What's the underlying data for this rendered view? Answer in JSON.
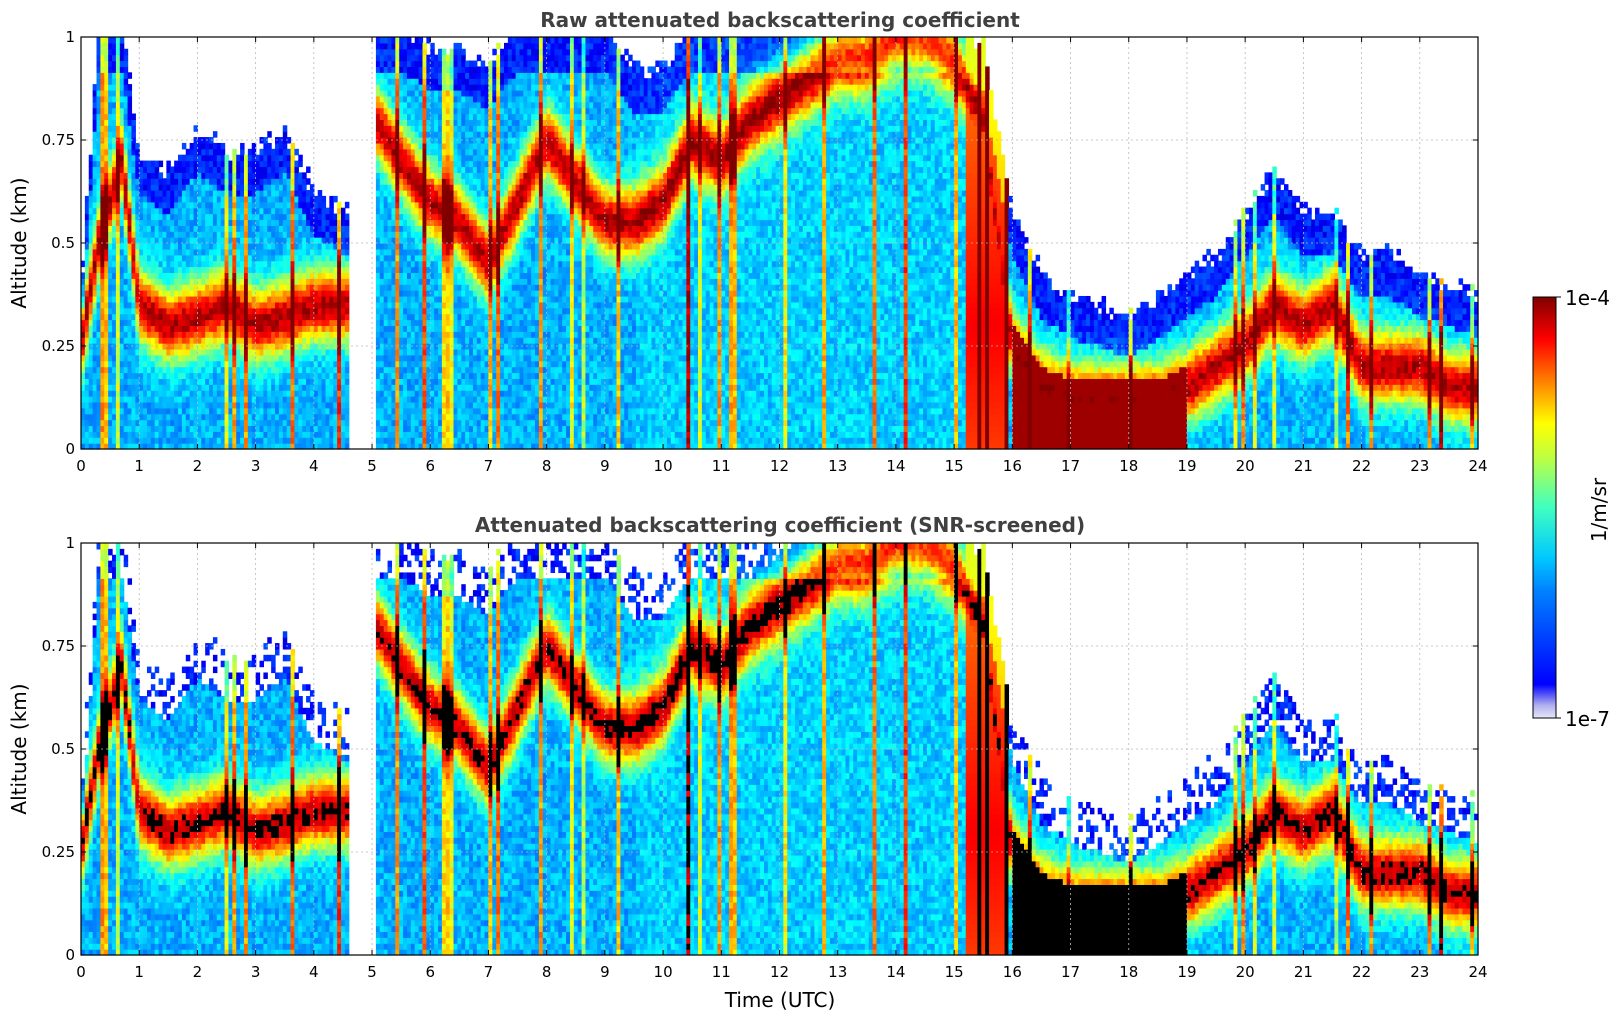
{
  "colorbar": {
    "label": "1/m/sr",
    "max_label": "1e-4",
    "min_label": "1e-7",
    "range": [
      1e-07,
      0.0001
    ],
    "scale": "log",
    "colormap": "jet",
    "min_color": "#e6e6fa"
  },
  "chart_data": [
    {
      "type": "heatmap",
      "title": "Raw attenuated backscattering coefficient",
      "xlabel": "",
      "ylabel": "Altitude (km)",
      "xlim": [
        0,
        24
      ],
      "ylim": [
        0,
        1
      ],
      "xticks": [
        0,
        1,
        2,
        3,
        4,
        5,
        6,
        7,
        8,
        9,
        10,
        11,
        12,
        13,
        14,
        15,
        16,
        17,
        18,
        19,
        20,
        21,
        22,
        23,
        24
      ],
      "xtick_labels": [
        "0",
        "1",
        "2",
        "3",
        "4",
        "5",
        "6",
        "7",
        "8",
        "9",
        "10",
        "11",
        "12",
        "13",
        "14",
        "15",
        "16",
        "17",
        "18",
        "19",
        "20",
        "21",
        "22",
        "23",
        "24"
      ],
      "yticks": [
        0,
        0.25,
        0.5,
        0.75,
        1
      ],
      "ytick_labels": [
        "0",
        "0.25",
        "0.5",
        "0.75",
        "1"
      ],
      "grid": true,
      "data_gap_hours": [
        4.62,
        5.05
      ],
      "profile_keypoints": {
        "time_h": [
          0,
          0.3,
          0.7,
          1.0,
          1.5,
          2.0,
          2.5,
          3.0,
          3.5,
          4.0,
          4.6,
          5.05,
          5.5,
          6.0,
          6.5,
          7.0,
          7.5,
          8.0,
          8.5,
          9.0,
          9.5,
          10.0,
          10.5,
          11.0,
          11.5,
          12.0,
          12.5,
          13.0,
          13.5,
          14.0,
          14.5,
          15.0,
          15.5,
          16.0,
          16.5,
          17.0,
          17.5,
          18.0,
          18.5,
          19.0,
          19.5,
          20.0,
          20.5,
          21.0,
          21.5,
          22.0,
          22.5,
          23.0,
          23.5,
          24.0
        ],
        "layer_km": [
          0.25,
          0.5,
          0.7,
          0.35,
          0.3,
          0.32,
          0.35,
          0.3,
          0.32,
          0.35,
          0.35,
          0.8,
          0.7,
          0.6,
          0.55,
          0.45,
          0.6,
          0.75,
          0.65,
          0.55,
          0.55,
          0.6,
          0.75,
          0.7,
          0.8,
          0.85,
          0.9,
          0.95,
          0.95,
          1.0,
          1.0,
          0.95,
          0.8,
          0.25,
          0.15,
          0.12,
          0.12,
          0.12,
          0.12,
          0.15,
          0.2,
          0.25,
          0.35,
          0.3,
          0.35,
          0.2,
          0.2,
          0.2,
          0.15,
          0.15
        ],
        "top_km": [
          0.35,
          1.0,
          1.0,
          0.7,
          0.65,
          0.75,
          0.7,
          0.7,
          0.75,
          0.6,
          0.55,
          1.0,
          1.0,
          0.95,
          0.95,
          0.9,
          1.0,
          1.0,
          1.0,
          1.0,
          0.9,
          0.9,
          1.0,
          1.0,
          1.0,
          1.0,
          1.0,
          1.0,
          1.0,
          1.0,
          1.0,
          1.0,
          0.95,
          0.55,
          0.4,
          0.35,
          0.33,
          0.3,
          0.35,
          0.4,
          0.45,
          0.55,
          0.65,
          0.55,
          0.55,
          0.45,
          0.45,
          0.4,
          0.38,
          0.35
        ]
      }
    },
    {
      "type": "heatmap",
      "title": "Attenuated backscattering coefficient (SNR-screened)",
      "xlabel": "Time (UTC)",
      "ylabel": "Altitude (km)",
      "xlim": [
        0,
        24
      ],
      "ylim": [
        0,
        1
      ],
      "xticks": [
        0,
        1,
        2,
        3,
        4,
        5,
        6,
        7,
        8,
        9,
        10,
        11,
        12,
        13,
        14,
        15,
        16,
        17,
        18,
        19,
        20,
        21,
        22,
        23,
        24
      ],
      "xtick_labels": [
        "0",
        "1",
        "2",
        "3",
        "4",
        "5",
        "6",
        "7",
        "8",
        "9",
        "10",
        "11",
        "12",
        "13",
        "14",
        "15",
        "16",
        "17",
        "18",
        "19",
        "20",
        "21",
        "22",
        "23",
        "24"
      ],
      "yticks": [
        0,
        0.25,
        0.5,
        0.75,
        1
      ],
      "ytick_labels": [
        "0",
        "0.25",
        "0.5",
        "0.75",
        "1"
      ],
      "grid": true,
      "data_gap_hours": [
        4.62,
        5.05
      ],
      "saturated_color": "#000000",
      "note": "same field as the raw panel with low-SNR bins removed and saturated layer bins drawn black"
    }
  ]
}
